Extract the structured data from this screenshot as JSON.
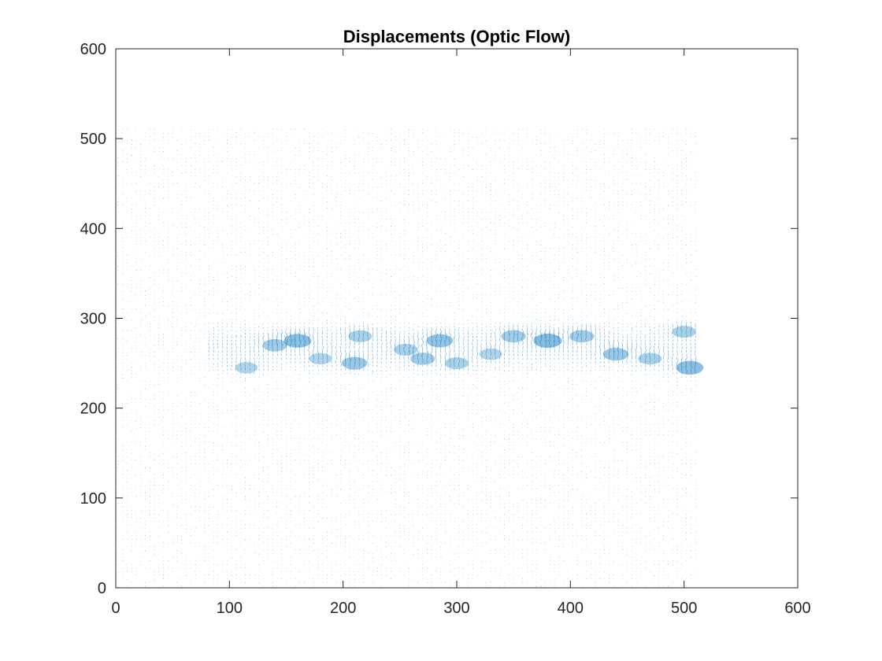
{
  "chart_data": {
    "type": "quiver",
    "title": "Displacements (Optic Flow)",
    "xlabel": "",
    "ylabel": "",
    "xlim": [
      0,
      600
    ],
    "ylim": [
      0,
      600
    ],
    "xticks": [
      "0",
      "100",
      "200",
      "300",
      "400",
      "500",
      "600"
    ],
    "yticks": [
      "0",
      "100",
      "200",
      "300",
      "400",
      "500",
      "600"
    ],
    "grid": false,
    "box": true,
    "series": [
      {
        "color": "#0072BD",
        "field_extent": {
          "x": [
            0,
            512
          ],
          "y": [
            0,
            512
          ]
        },
        "high_displacement_band": {
          "y": [
            235,
            300
          ],
          "x": [
            80,
            512
          ]
        },
        "strong_blobs": [
          {
            "x": 160,
            "y": 275,
            "strength": 0.9
          },
          {
            "x": 140,
            "y": 270,
            "strength": 0.6
          },
          {
            "x": 210,
            "y": 250,
            "strength": 0.7
          },
          {
            "x": 215,
            "y": 280,
            "strength": 0.5
          },
          {
            "x": 255,
            "y": 265,
            "strength": 0.5
          },
          {
            "x": 285,
            "y": 275,
            "strength": 0.8
          },
          {
            "x": 270,
            "y": 255,
            "strength": 0.6
          },
          {
            "x": 300,
            "y": 250,
            "strength": 0.5
          },
          {
            "x": 350,
            "y": 280,
            "strength": 0.6
          },
          {
            "x": 380,
            "y": 275,
            "strength": 1.0
          },
          {
            "x": 410,
            "y": 280,
            "strength": 0.6
          },
          {
            "x": 440,
            "y": 260,
            "strength": 0.7
          },
          {
            "x": 470,
            "y": 255,
            "strength": 0.5
          },
          {
            "x": 505,
            "y": 245,
            "strength": 0.9
          },
          {
            "x": 115,
            "y": 245,
            "strength": 0.4
          },
          {
            "x": 180,
            "y": 255,
            "strength": 0.4
          },
          {
            "x": 330,
            "y": 260,
            "strength": 0.4
          },
          {
            "x": 500,
            "y": 285,
            "strength": 0.5
          }
        ]
      }
    ]
  }
}
